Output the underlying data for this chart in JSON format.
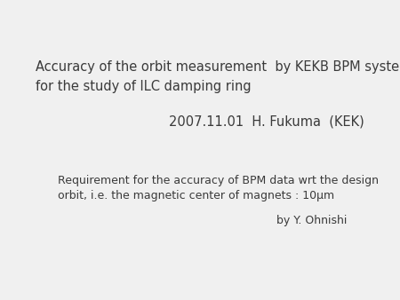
{
  "background_color": "#f0f0f0",
  "title_line1": "Accuracy of the orbit measurement  by KEKB BPM system",
  "title_line2": "for the study of ILC damping ring",
  "date_author": "2007.11.01  H. Fukuma  (KEK)",
  "req_line1": "Requirement for the accuracy of BPM data wrt the design",
  "req_line2": "orbit, i.e. the magnetic center of magnets : 10μm",
  "by_line": "by Y. Ohnishi",
  "title_fontsize": 10.5,
  "body_fontsize": 9.0,
  "text_color": "#3a3a3a",
  "fig_width": 4.5,
  "fig_height": 3.38,
  "dpi": 100
}
